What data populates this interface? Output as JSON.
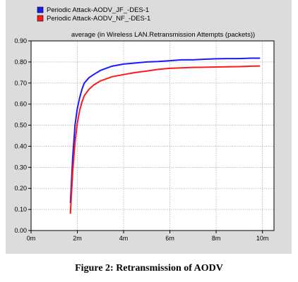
{
  "caption": "Figure 2: Retransmission of AODV",
  "chart_data": {
    "type": "line",
    "subtitle": "average (in Wireless LAN.Retransmission Attempts (packets))",
    "x_ticks": [
      "0m",
      "2m",
      "4m",
      "6m",
      "8m",
      "10m"
    ],
    "y_ticks": [
      "0.00",
      "0.10",
      "0.20",
      "0.30",
      "0.40",
      "0.50",
      "0.60",
      "0.70",
      "0.80",
      "0.90"
    ],
    "xlim": [
      0,
      10.5
    ],
    "ylim": [
      0,
      0.9
    ],
    "x_unit": "minutes",
    "grid": true,
    "legend_position": "top-left",
    "series": [
      {
        "name": "Periodic Attack-AODV_JF_-DES-1",
        "color": "#1a1aff",
        "points": [
          [
            1.7,
            0.13
          ],
          [
            1.8,
            0.35
          ],
          [
            1.9,
            0.5
          ],
          [
            2.0,
            0.58
          ],
          [
            2.1,
            0.63
          ],
          [
            2.2,
            0.67
          ],
          [
            2.3,
            0.7
          ],
          [
            2.5,
            0.725
          ],
          [
            2.7,
            0.74
          ],
          [
            3.0,
            0.76
          ],
          [
            3.5,
            0.78
          ],
          [
            4.0,
            0.79
          ],
          [
            4.5,
            0.795
          ],
          [
            5.0,
            0.8
          ],
          [
            5.5,
            0.802
          ],
          [
            6.0,
            0.806
          ],
          [
            6.5,
            0.81
          ],
          [
            7.0,
            0.81
          ],
          [
            7.5,
            0.813
          ],
          [
            8.0,
            0.815
          ],
          [
            8.5,
            0.816
          ],
          [
            9.0,
            0.816
          ],
          [
            9.5,
            0.818
          ],
          [
            9.9,
            0.818
          ]
        ]
      },
      {
        "name": "Periodic Attack-AODV_NF_-DES-1",
        "color": "#ff1a1a",
        "points": [
          [
            1.7,
            0.08
          ],
          [
            1.8,
            0.28
          ],
          [
            1.9,
            0.42
          ],
          [
            2.0,
            0.51
          ],
          [
            2.1,
            0.57
          ],
          [
            2.2,
            0.61
          ],
          [
            2.3,
            0.64
          ],
          [
            2.5,
            0.67
          ],
          [
            2.7,
            0.69
          ],
          [
            3.0,
            0.71
          ],
          [
            3.5,
            0.73
          ],
          [
            4.0,
            0.74
          ],
          [
            4.5,
            0.75
          ],
          [
            5.0,
            0.757
          ],
          [
            5.5,
            0.765
          ],
          [
            6.0,
            0.77
          ],
          [
            6.5,
            0.772
          ],
          [
            7.0,
            0.774
          ],
          [
            7.5,
            0.775
          ],
          [
            8.0,
            0.776
          ],
          [
            8.5,
            0.777
          ],
          [
            9.0,
            0.778
          ],
          [
            9.5,
            0.78
          ],
          [
            9.9,
            0.781
          ]
        ]
      }
    ]
  }
}
